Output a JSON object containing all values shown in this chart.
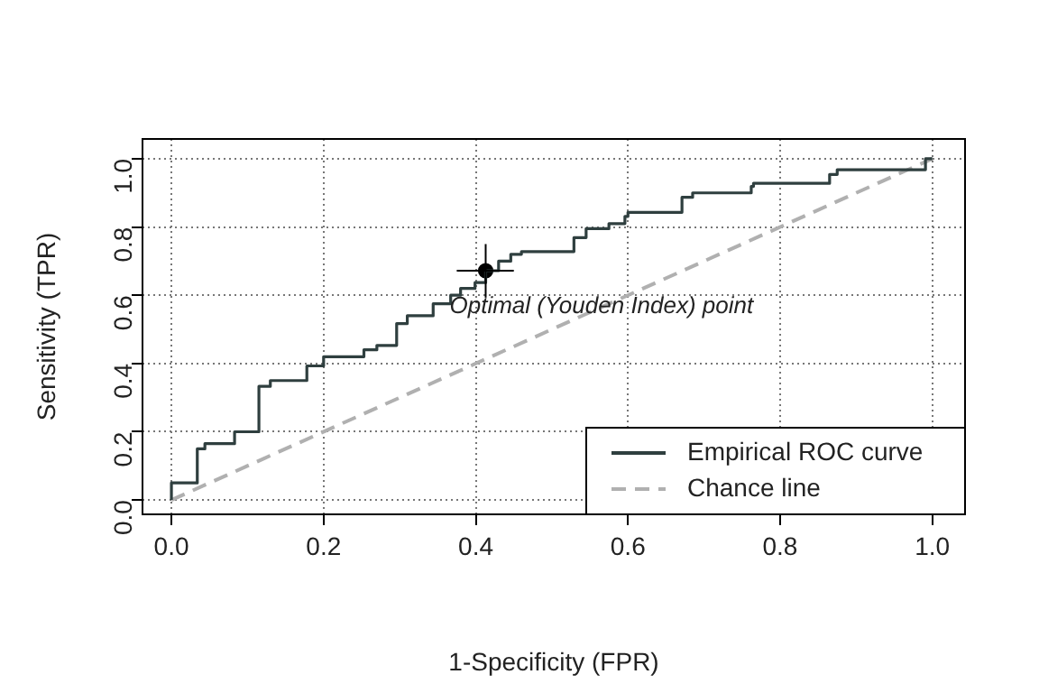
{
  "chart_data": {
    "type": "step",
    "xlabel": "1-Specificity (FPR)",
    "ylabel": "Sensitivity (TPR)",
    "xlim": [
      -0.038,
      1.043
    ],
    "ylim": [
      -0.042,
      1.058
    ],
    "xticks": [
      {
        "value": 0,
        "label": "0.0"
      },
      0.2,
      0.4,
      0.6,
      0.8,
      {
        "value": 1,
        "label": "1.0"
      }
    ],
    "yticks": [
      {
        "value": 0,
        "label": "0.0"
      },
      0.2,
      0.4,
      0.6,
      0.8,
      {
        "value": 1,
        "label": "1.0"
      }
    ],
    "grid": true,
    "legend": "bottom right",
    "series": [
      {
        "name": "Empirical ROC curve",
        "type": "step",
        "color": "#2f3f3f",
        "line_style": "solid",
        "marker": "none",
        "x": [
          0,
          0,
          0.034,
          0.044,
          0.083,
          0.115,
          0.13,
          0.178,
          0.2,
          0.253,
          0.27,
          0.296,
          0.31,
          0.344,
          0.367,
          0.38,
          0.399,
          0.413,
          0.43,
          0.446,
          0.46,
          0.529,
          0.545,
          0.575,
          0.596,
          0.6,
          0.671,
          0.685,
          0.762,
          0.765,
          0.865,
          0.875,
          0.991,
          1
        ],
        "values": [
          0,
          0.05,
          0.15,
          0.165,
          0.2,
          0.333,
          0.35,
          0.393,
          0.42,
          0.44,
          0.453,
          0.517,
          0.54,
          0.575,
          0.6,
          0.62,
          0.637,
          0.672,
          0.7,
          0.72,
          0.728,
          0.769,
          0.795,
          0.81,
          0.831,
          0.843,
          0.887,
          0.9,
          0.919,
          0.928,
          0.954,
          0.968,
          1,
          1
        ]
      },
      {
        "name": "Chance line",
        "type": "line",
        "color": "#b0b0b0",
        "line_style": "dashed",
        "marker": "none",
        "x": [
          0,
          1
        ],
        "values": [
          0,
          1
        ]
      },
      {
        "type": "scatter",
        "color": "#000000",
        "marker": "circle",
        "x": [
          0.413
        ],
        "values": [
          0.672
        ],
        "errors": [
          [
            0.593,
            0.75
          ]
        ],
        "xerrors": [
          [
            0.375,
            0.45
          ]
        ]
      }
    ],
    "annotations": [
      {
        "text": "Optimal (Youden Index) point",
        "x": 0.413,
        "y": 0.672
      }
    ]
  }
}
